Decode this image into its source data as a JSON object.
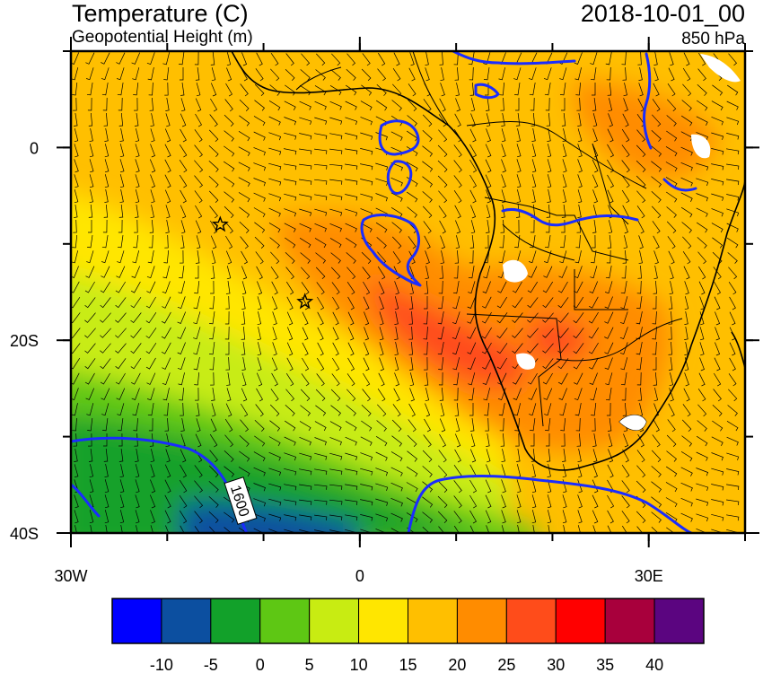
{
  "header": {
    "title": "Temperature (C)",
    "subtitle": "Geopotential Height (m)",
    "valid_time": "2018-10-01_00",
    "level": "850 hPa"
  },
  "map": {
    "lon_range": [
      -30,
      40
    ],
    "lat_range": [
      -40,
      10
    ],
    "x_ticks": [
      {
        "lon": -30,
        "label": "30W"
      },
      {
        "lon": 0,
        "label": "0"
      },
      {
        "lon": 30,
        "label": "30E"
      }
    ],
    "y_ticks": [
      {
        "lat": 0,
        "label": "0"
      },
      {
        "lat": -20,
        "label": "20S"
      },
      {
        "lat": -40,
        "label": "40S"
      }
    ],
    "contour_label": "1600",
    "contour_color": "#1a2cff",
    "coastline_color": "#000000",
    "markers": [
      {
        "lon": -14.5,
        "lat": -8,
        "symbol": "star"
      },
      {
        "lon": -5.7,
        "lat": -16,
        "symbol": "star"
      }
    ]
  },
  "colorbar": {
    "colors": [
      "#0000ff",
      "#0c4fa0",
      "#12a12a",
      "#5ec714",
      "#c8ec12",
      "#ffe600",
      "#ffbf00",
      "#ff8c00",
      "#ff4c1a",
      "#ff0000",
      "#a8003c",
      "#5b0580"
    ],
    "labels": [
      "-10",
      "-5",
      "0",
      "5",
      "10",
      "15",
      "20",
      "25",
      "30",
      "35",
      "40"
    ]
  }
}
